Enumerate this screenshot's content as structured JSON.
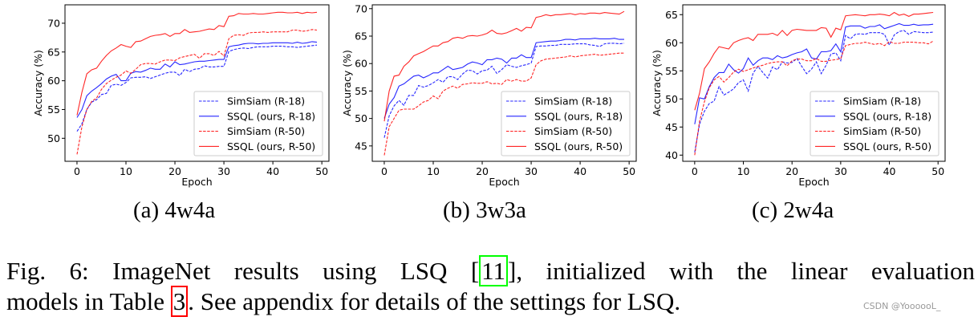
{
  "chart_data": [
    {
      "type": "line",
      "subcaption": "(a) 4w4a",
      "xlabel": "Epoch",
      "ylabel": "Accuracy (%)",
      "xlim": [
        -2.45,
        51.45
      ],
      "ylim": [
        46,
        73.2
      ],
      "xticks": [
        0,
        10,
        20,
        30,
        40,
        50
      ],
      "yticks": [
        50,
        55,
        60,
        65,
        70
      ],
      "legend_placement": "lower-right",
      "grid": false,
      "series": [
        {
          "name": "SimSiam (R-18)",
          "color": "#0000ff",
          "style": "dashed",
          "values": [
            51.2,
            52.5,
            55,
            56.3,
            56.7,
            57.6,
            57.8,
            59.2,
            59.4,
            59.2,
            59.7,
            60.5,
            60.6,
            60.6,
            60.7,
            60.4,
            60.7,
            61,
            61.3,
            61.5,
            61.5,
            60.9,
            62,
            61.6,
            62,
            62.1,
            62.6,
            62.4,
            62.4,
            62.5,
            62.5,
            65.1,
            65.4,
            65.6,
            65.7,
            65.6,
            65.8,
            65.9,
            65.9,
            65.9,
            66,
            66,
            66,
            65.9,
            65.9,
            65.8,
            65.9,
            66,
            66.1,
            66.2
          ]
        },
        {
          "name": "SSQL (ours, R-18)",
          "color": "#0000ff",
          "style": "solid",
          "values": [
            53.6,
            55,
            57.4,
            58.2,
            58.8,
            59.5,
            60.3,
            60.8,
            61.1,
            60,
            60,
            61.3,
            61.6,
            61.5,
            61.8,
            62.2,
            62,
            62,
            62.9,
            62.4,
            63.3,
            62.8,
            62.9,
            63.1,
            63.3,
            63.4,
            63.4,
            63.5,
            63.6,
            63.7,
            63.7,
            65.9,
            66.1,
            66.2,
            66.4,
            66.5,
            66.5,
            66.4,
            66.5,
            66.5,
            66.6,
            66.6,
            66.6,
            66.6,
            66.5,
            66.7,
            66.5,
            66.6,
            66.8,
            66.7
          ]
        },
        {
          "name": "SimSiam (R-50)",
          "color": "#ff0000",
          "style": "dashed",
          "values": [
            47.2,
            52,
            55,
            56.4,
            57,
            58.5,
            59.5,
            60.1,
            60.6,
            61,
            61.7,
            61.3,
            62,
            62.8,
            63,
            63,
            62.9,
            63.3,
            63.6,
            63.6,
            63.5,
            64,
            64.2,
            64.4,
            64.6,
            63.9,
            64.7,
            64.7,
            64.4,
            65.1,
            64.3,
            67.3,
            67.9,
            68,
            67.9,
            68.3,
            68.4,
            68.4,
            68.5,
            68.4,
            68.5,
            68.5,
            68.5,
            68.5,
            68.8,
            68.8,
            68.6,
            68.7,
            68.9,
            68.8
          ]
        },
        {
          "name": "SSQL (ours, R-50)",
          "color": "#ff0000",
          "style": "solid",
          "values": [
            54,
            58,
            61.2,
            61.9,
            62.2,
            63.4,
            64.4,
            65.2,
            65.7,
            66.3,
            66,
            65.8,
            66.8,
            66.9,
            67.3,
            67.7,
            67.9,
            68,
            68.2,
            67.7,
            68.2,
            68.2,
            68.9,
            68.4,
            68.5,
            68.6,
            68.8,
            69,
            68.9,
            69.6,
            69.4,
            71.2,
            71.3,
            71.7,
            71.6,
            71.6,
            71.7,
            71.6,
            71.6,
            71.7,
            71.8,
            71.9,
            71.9,
            71.8,
            71.8,
            71.9,
            71.7,
            71.9,
            71.8,
            71.9
          ]
        }
      ]
    },
    {
      "type": "line",
      "subcaption": "(b) 3w3a",
      "xlabel": "Epoch",
      "ylabel": "Accuracy (%)",
      "xlim": [
        -2.45,
        51.45
      ],
      "ylim": [
        42.2,
        70.7
      ],
      "xticks": [
        0,
        10,
        20,
        30,
        40,
        50
      ],
      "yticks": [
        45,
        50,
        55,
        60,
        65,
        70
      ],
      "legend_placement": "lower-right",
      "grid": false,
      "series": [
        {
          "name": "SimSiam (R-18)",
          "color": "#0000ff",
          "style": "dashed",
          "values": [
            46.5,
            50.5,
            52.3,
            53.3,
            52.4,
            54.2,
            54.2,
            56,
            55.7,
            56,
            56.5,
            57.1,
            56.6,
            57.6,
            57.6,
            57.1,
            58.1,
            58.8,
            58.7,
            58.1,
            58.7,
            58.8,
            59.5,
            58.2,
            58.9,
            59.8,
            59.5,
            59.3,
            59.6,
            59.8,
            60.1,
            63.1,
            63.2,
            63.2,
            63.3,
            63.3,
            63.5,
            63.5,
            63.5,
            63.6,
            63.6,
            63.6,
            63.4,
            63.3,
            63.1,
            63.6,
            63.7,
            63.7,
            63.6,
            63.7
          ]
        },
        {
          "name": "SSQL (ours, R-18)",
          "color": "#0000ff",
          "style": "solid",
          "values": [
            50,
            52.6,
            53.8,
            55.9,
            56.3,
            57,
            57.7,
            57.9,
            57.4,
            57.8,
            58.3,
            58.3,
            58.9,
            59.5,
            58.9,
            59.1,
            59.3,
            59.9,
            60.3,
            60.1,
            59.8,
            60.7,
            60.7,
            61,
            60.8,
            60.1,
            61,
            61,
            61.6,
            61.1,
            61.1,
            63.8,
            63.9,
            64,
            64.1,
            64.1,
            64.2,
            64.4,
            64.4,
            64.3,
            64.5,
            64.5,
            64.5,
            64.6,
            64.5,
            64.5,
            64.5,
            64.6,
            64.4,
            64.4
          ]
        },
        {
          "name": "SimSiam (R-50)",
          "color": "#ff0000",
          "style": "dashed",
          "values": [
            43.3,
            48.5,
            50,
            51.5,
            51.7,
            51.7,
            51.7,
            52.3,
            53,
            53.3,
            54.1,
            53.6,
            55,
            55.5,
            55.9,
            55.5,
            56.2,
            56.3,
            56.5,
            56.4,
            56.4,
            56.7,
            56.3,
            56.4,
            56.2,
            57.1,
            56.8,
            57.1,
            56.8,
            56.8,
            57.4,
            59.8,
            60.5,
            60.8,
            60.9,
            61,
            61.1,
            61.2,
            61.4,
            61.2,
            61.4,
            61.5,
            61.6,
            61.7,
            61.5,
            61.6,
            61.7,
            61.8,
            61.9,
            61.9
          ]
        },
        {
          "name": "SSQL (ours, R-50)",
          "color": "#ff0000",
          "style": "solid",
          "values": [
            49.5,
            55,
            57.7,
            57.9,
            59.5,
            60.3,
            61.4,
            61.8,
            62.2,
            62.7,
            63.2,
            63.2,
            63.8,
            64,
            64.6,
            64.8,
            64.6,
            65,
            65.1,
            65,
            65.2,
            65.5,
            66.1,
            65.5,
            65.4,
            65.6,
            66,
            66.4,
            65.9,
            66.6,
            66.5,
            68.4,
            68.6,
            68.9,
            68.7,
            68.9,
            68.9,
            69,
            69.1,
            68.9,
            69.1,
            69,
            69.2,
            69.2,
            69.1,
            69.3,
            69.2,
            69.1,
            69,
            69.5
          ]
        }
      ]
    },
    {
      "type": "line",
      "subcaption": "(c) 2w4a",
      "xlabel": "Epoch",
      "ylabel": "Accuracy (%)",
      "xlim": [
        -2.45,
        51.45
      ],
      "ylim": [
        38.9,
        66.75
      ],
      "xticks": [
        0,
        10,
        20,
        30,
        40,
        50
      ],
      "yticks": [
        40,
        45,
        50,
        55,
        60,
        65
      ],
      "legend_placement": "lower-right",
      "grid": false,
      "series": [
        {
          "name": "SimSiam (R-18)",
          "color": "#0000ff",
          "style": "dashed",
          "values": [
            40.5,
            45.5,
            47.8,
            49.2,
            49.6,
            52.2,
            50.7,
            51.2,
            51.8,
            52.9,
            53.4,
            51.4,
            54.6,
            55.8,
            54.7,
            53.7,
            55.7,
            55.2,
            56.6,
            56.4,
            56.5,
            57.2,
            55.8,
            54.5,
            55.3,
            56.6,
            54.5,
            56,
            58,
            58.2,
            56.8,
            61.3,
            60.7,
            61.5,
            61.6,
            61.5,
            61.8,
            61.8,
            61.8,
            61.5,
            59.6,
            61.4,
            62,
            62.2,
            61.5,
            62,
            61.9,
            61.8,
            61.8,
            61.9
          ]
        },
        {
          "name": "SSQL (ours, R-18)",
          "color": "#0000ff",
          "style": "solid",
          "values": [
            45.5,
            50.2,
            50,
            52.2,
            53.8,
            54.7,
            54.7,
            56.2,
            55.2,
            54.6,
            55.4,
            57.3,
            56,
            56.8,
            57.3,
            57.3,
            57,
            57.7,
            57.3,
            57.5,
            57.9,
            58.2,
            58.4,
            58.9,
            57.3,
            57.1,
            58.4,
            58.4,
            58.6,
            59.8,
            58.4,
            62.8,
            63,
            63,
            63,
            62.6,
            62.9,
            62.9,
            63.2,
            62.5,
            62.8,
            63.1,
            63.4,
            63.1,
            63.1,
            63.3,
            63.1,
            63.2,
            63.2,
            63.3
          ]
        },
        {
          "name": "SimSiam (R-50)",
          "color": "#ff0000",
          "style": "dashed",
          "values": [
            40,
            46,
            49.5,
            52,
            53.4,
            54,
            53,
            53.8,
            54.8,
            55.3,
            54.9,
            55.2,
            55.5,
            55.8,
            56,
            56.3,
            56.5,
            56.6,
            56.6,
            55.9,
            56.8,
            57.1,
            57.1,
            56.8,
            56.8,
            57.2,
            56.7,
            56.7,
            56.9,
            57,
            57.2,
            59.5,
            59.7,
            59.9,
            59.9,
            60.1,
            59.9,
            59.7,
            59.9,
            59.5,
            60.2,
            59.9,
            59.9,
            60.1,
            60.1,
            60.1,
            60,
            60,
            59.8,
            60.3
          ]
        },
        {
          "name": "SSQL (ours, R-50)",
          "color": "#ff0000",
          "style": "solid",
          "values": [
            48,
            51,
            55.4,
            56.6,
            58.1,
            59.3,
            59.1,
            58.9,
            60,
            60.4,
            60.7,
            60.9,
            60.4,
            61.5,
            61.5,
            61.5,
            61.7,
            61.3,
            62.2,
            61.3,
            62.2,
            62.4,
            62.3,
            62.2,
            62.2,
            62.2,
            62.7,
            62.6,
            61,
            62.6,
            62.3,
            64.8,
            64.9,
            65,
            64.9,
            64.8,
            65,
            65,
            65.1,
            65,
            64.8,
            65.4,
            64.9,
            65.1,
            64.7,
            65.1,
            65.1,
            65.2,
            65.3,
            65.4
          ]
        }
      ]
    }
  ],
  "caption": {
    "line1_pre": "Fig. 6: ImageNet results using LSQ [",
    "ref_11": "11",
    "line1_post": "], initialized with the linear evaluation",
    "line2_pre": "models in Table ",
    "ref_3": "3",
    "line2_post": ". See appendix for details of the settings for LSQ.",
    "ref_box_colors": {
      "citation": "#00ff00",
      "table": "#ff0000"
    }
  },
  "watermark": "CSDN @YoooooL_"
}
